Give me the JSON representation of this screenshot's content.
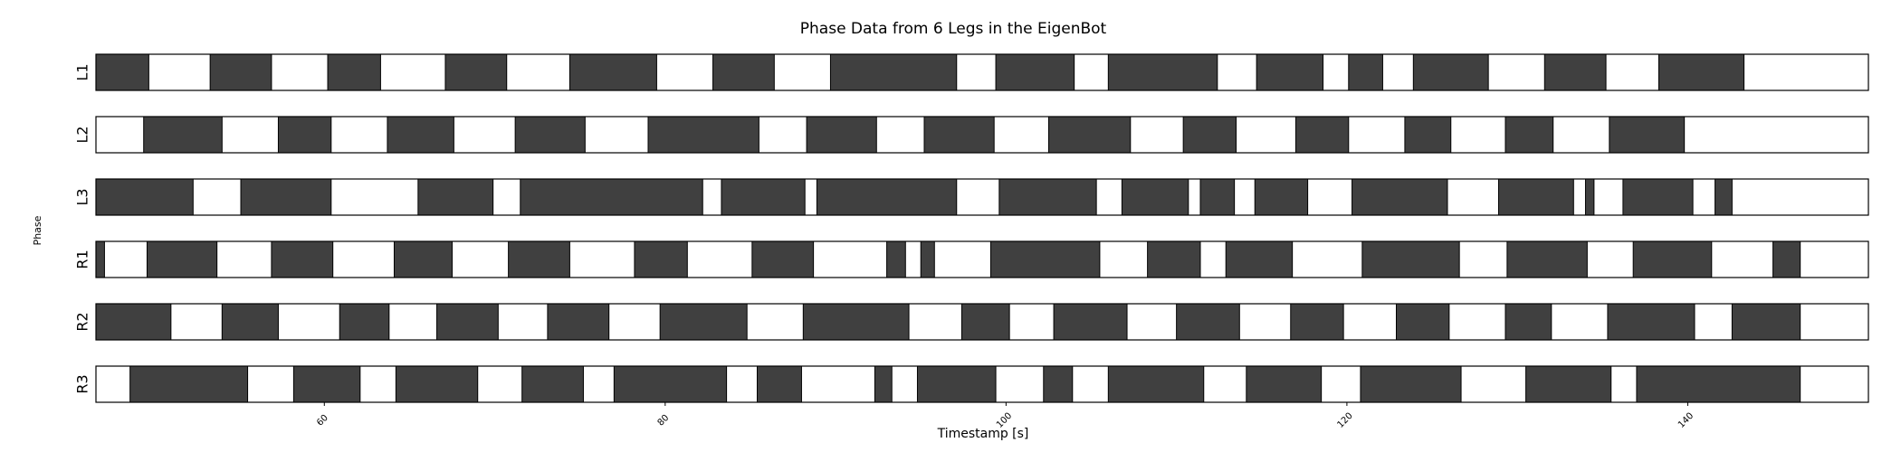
{
  "chart_data": {
    "type": "gantt",
    "title": "Phase Data from 6 Legs in the EigenBot",
    "xlabel": "Timestamp [s]",
    "ylabel": "Phase",
    "xlim": [
      46.6,
      150.6
    ],
    "xticks": [
      60,
      80,
      100,
      120,
      140
    ],
    "legs": [
      {
        "name": "L1",
        "stance": [
          [
            46.6,
            49.7
          ],
          [
            53.3,
            56.9
          ],
          [
            60.2,
            63.3
          ],
          [
            67.1,
            70.7
          ],
          [
            74.4,
            79.5
          ],
          [
            82.8,
            86.4
          ],
          [
            89.7,
            97.1
          ],
          [
            99.4,
            104.0
          ],
          [
            106.0,
            112.4
          ],
          [
            114.7,
            118.6
          ],
          [
            120.1,
            122.1
          ],
          [
            123.9,
            128.3
          ],
          [
            131.6,
            135.2
          ],
          [
            138.3,
            143.3
          ]
        ],
        "color": "#404040"
      },
      {
        "name": "L2",
        "stance": [
          [
            49.4,
            54.0
          ],
          [
            57.3,
            60.4
          ],
          [
            63.7,
            67.6
          ],
          [
            71.2,
            75.3
          ],
          [
            79.0,
            85.5
          ],
          [
            88.3,
            92.4
          ],
          [
            95.2,
            99.3
          ],
          [
            102.5,
            107.3
          ],
          [
            110.4,
            113.5
          ],
          [
            117.0,
            120.1
          ],
          [
            123.4,
            126.1
          ],
          [
            129.3,
            132.1
          ],
          [
            135.4,
            139.8
          ]
        ],
        "color": "#404040"
      },
      {
        "name": "L3",
        "stance": [
          [
            46.6,
            52.3
          ],
          [
            55.1,
            60.4
          ],
          [
            65.5,
            69.9
          ],
          [
            71.5,
            82.2
          ],
          [
            83.3,
            88.2
          ],
          [
            88.9,
            97.1
          ],
          [
            99.6,
            105.3
          ],
          [
            106.8,
            110.7
          ],
          [
            111.4,
            113.4
          ],
          [
            114.6,
            117.7
          ],
          [
            120.3,
            125.9
          ],
          [
            128.9,
            133.3
          ],
          [
            134.0,
            134.5
          ],
          [
            136.2,
            140.3
          ],
          [
            141.6,
            142.6
          ]
        ],
        "color": "#404040"
      },
      {
        "name": "R1",
        "stance": [
          [
            46.6,
            47.1
          ],
          [
            49.6,
            53.7
          ],
          [
            56.9,
            60.5
          ],
          [
            64.1,
            67.5
          ],
          [
            70.8,
            74.4
          ],
          [
            78.2,
            81.3
          ],
          [
            85.1,
            88.7
          ],
          [
            93.0,
            94.1
          ],
          [
            95.0,
            95.8
          ],
          [
            99.1,
            105.5
          ],
          [
            108.3,
            111.4
          ],
          [
            112.9,
            116.8
          ],
          [
            120.9,
            126.6
          ],
          [
            129.4,
            134.1
          ],
          [
            136.8,
            141.4
          ],
          [
            145.0,
            146.6
          ]
        ],
        "color": "#404040"
      },
      {
        "name": "R2",
        "stance": [
          [
            46.6,
            51.0
          ],
          [
            54.0,
            57.3
          ],
          [
            60.9,
            63.8
          ],
          [
            66.6,
            70.2
          ],
          [
            73.1,
            76.7
          ],
          [
            79.7,
            84.8
          ],
          [
            88.1,
            94.3
          ],
          [
            97.4,
            100.2
          ],
          [
            102.8,
            107.1
          ],
          [
            110.0,
            113.7
          ],
          [
            116.7,
            119.8
          ],
          [
            122.9,
            126.0
          ],
          [
            129.3,
            132.0
          ],
          [
            135.3,
            140.4
          ],
          [
            142.6,
            146.6
          ]
        ],
        "color": "#404040"
      },
      {
        "name": "R3",
        "stance": [
          [
            48.6,
            55.5
          ],
          [
            58.2,
            62.1
          ],
          [
            64.2,
            69.0
          ],
          [
            71.6,
            75.2
          ],
          [
            77.0,
            83.6
          ],
          [
            85.4,
            88.0
          ],
          [
            92.3,
            93.3
          ],
          [
            94.8,
            99.4
          ],
          [
            102.2,
            103.9
          ],
          [
            106.0,
            111.6
          ],
          [
            114.1,
            118.5
          ],
          [
            120.8,
            126.7
          ],
          [
            130.5,
            135.5
          ],
          [
            137.0,
            146.6
          ]
        ],
        "color": "#404040"
      }
    ],
    "swing_color": "#ffffff",
    "stance_color": "#404040"
  }
}
